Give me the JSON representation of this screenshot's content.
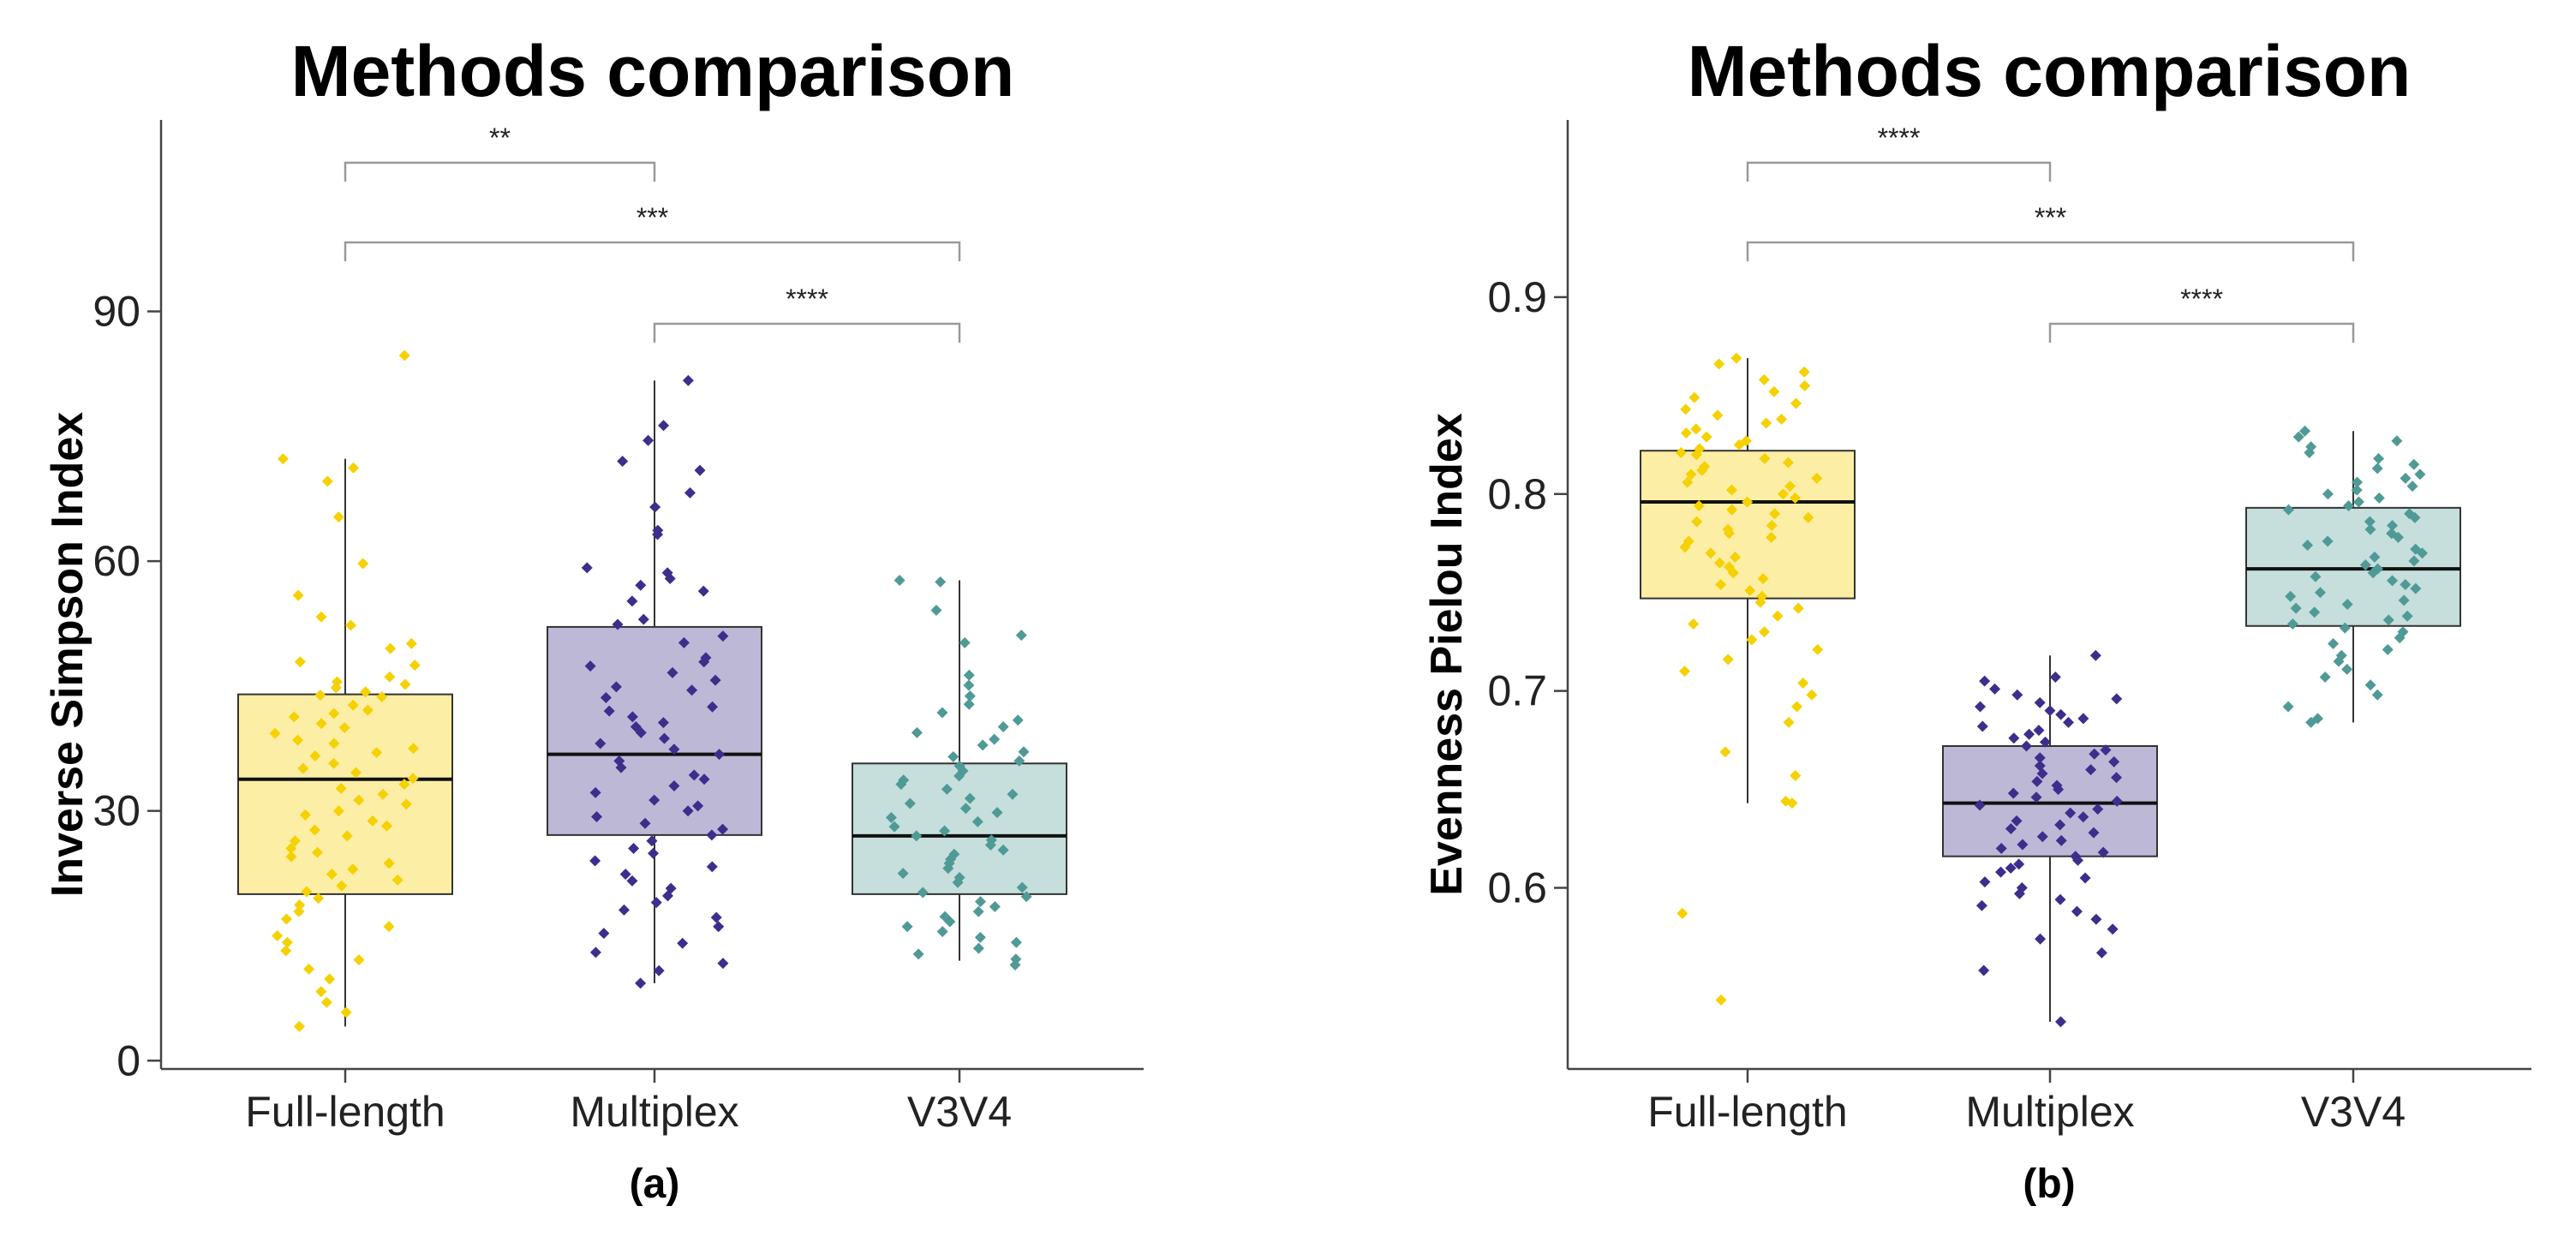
{
  "chart_data": [
    {
      "type": "boxplot",
      "title": "Methods comparison",
      "panel_label": "(a)",
      "xlabel": "",
      "ylabel": "Inverse Simpson Index",
      "categories": [
        "Full-length",
        "Multiplex",
        "V3V4"
      ],
      "ylim": [
        -1,
        113
      ],
      "yticks": [
        0,
        30,
        60,
        90
      ],
      "grid": false,
      "box_stats": [
        {
          "name": "Full-length",
          "min": 4.1,
          "q1": 20,
          "median": 33.8,
          "q3": 44,
          "max": 72.3
        },
        {
          "name": "Multiplex",
          "min": 9.3,
          "q1": 27.1,
          "median": 36.8,
          "q3": 52.1,
          "max": 81.7
        },
        {
          "name": "V3V4",
          "min": 12,
          "q1": 20,
          "median": 27,
          "q3": 35.7,
          "max": 57.7
        }
      ],
      "points": {
        "Full-length": [
          84.7,
          72.3,
          71.2,
          69.6,
          65.3,
          59.7,
          55.9,
          53.3,
          52.3,
          50.1,
          49.5,
          47.9,
          47.5,
          46.1,
          45.5,
          45.2,
          44.8,
          44.3,
          43.9,
          43.7,
          42.7,
          42.1,
          41.7,
          41.3,
          40.5,
          40,
          39.3,
          38.5,
          38.1,
          37.5,
          37,
          36.6,
          35.7,
          35.1,
          34.6,
          33.9,
          33.2,
          32.7,
          32,
          31.3,
          30.8,
          30,
          29.5,
          28.8,
          28.2,
          27.7,
          27,
          26.4,
          25.5,
          25,
          24.5,
          23.7,
          23,
          22.4,
          21.7,
          21,
          20.3,
          19.5,
          18.7,
          17.9,
          17,
          16.1,
          15,
          14.2,
          13.2,
          12.1,
          11,
          9.8,
          8.3,
          7,
          5.8,
          4.1
        ],
        "Multiplex": [
          81.7,
          76.3,
          74.5,
          72,
          70.9,
          68.2,
          66.5,
          63.7,
          63.2,
          59.2,
          58.6,
          57.9,
          57.1,
          56.4,
          55.2,
          53,
          52.4,
          51,
          50.2,
          48.4,
          47.9,
          47.4,
          46.6,
          45.7,
          44.9,
          44.5,
          43.6,
          42.5,
          42,
          41.3,
          40.6,
          40.1,
          39.4,
          38.7,
          38.1,
          37.4,
          36.8,
          36,
          35.2,
          34.3,
          33.8,
          33,
          32.2,
          31.3,
          30.6,
          30,
          29.3,
          28.5,
          27.8,
          27.1,
          26.4,
          25.5,
          24.9,
          24,
          23.3,
          22.4,
          21.6,
          20.7,
          19.8,
          19,
          18.1,
          17.2,
          16.1,
          15.3,
          14.1,
          13,
          11.7,
          10.8,
          9.3
        ],
        "V3V4": [
          57.7,
          57.5,
          54.1,
          51.1,
          50.2,
          46.3,
          45.1,
          43.8,
          42.8,
          41.8,
          40.9,
          40.1,
          39.4,
          38.6,
          37.9,
          37.1,
          36.5,
          36,
          35.4,
          34.8,
          34.2,
          33.7,
          33.2,
          32.6,
          32,
          31.5,
          30.9,
          30.3,
          29.8,
          29.2,
          28.7,
          28.1,
          27.6,
          27,
          26.5,
          25.9,
          25.3,
          24.8,
          24.2,
          23.7,
          23.1,
          22.5,
          22,
          21.4,
          20.8,
          20.2,
          19.7,
          19.1,
          18.5,
          17.9,
          17.3,
          16.7,
          16.1,
          15.5,
          14.8,
          14.2,
          13.5,
          12.8,
          12.2,
          11.5
        ]
      },
      "colors": {
        "Full-length": "#f5d100",
        "Multiplex": "#3f2d8c",
        "V3V4": "#4f9a96"
      },
      "box_fills": {
        "Full-length": "#fdeea6",
        "Multiplex": "#bdb8d6",
        "V3V4": "#c6dedc"
      },
      "comparisons": [
        {
          "from": "Full-length",
          "to": "Multiplex",
          "label": "**"
        },
        {
          "from": "Full-length",
          "to": "V3V4",
          "label": "***"
        },
        {
          "from": "Multiplex",
          "to": "V3V4",
          "label": "****"
        }
      ]
    },
    {
      "type": "boxplot",
      "title": "Methods comparison",
      "panel_label": "(b)",
      "xlabel": "",
      "ylabel": "Evenness Pielou Index",
      "categories": [
        "Full-length",
        "Multiplex",
        "V3V4"
      ],
      "ylim": [
        0.508,
        0.99
      ],
      "yticks": [
        0.6,
        0.7,
        0.8,
        0.9
      ],
      "ytick_labels": [
        "0.6",
        "0.7",
        "0.8",
        "0.9"
      ],
      "grid": false,
      "box_stats": [
        {
          "name": "Full-length",
          "min": 0.643,
          "q1": 0.747,
          "median": 0.796,
          "q3": 0.822,
          "max": 0.869
        },
        {
          "name": "Multiplex",
          "min": 0.532,
          "q1": 0.616,
          "median": 0.643,
          "q3": 0.672,
          "max": 0.718
        },
        {
          "name": "V3V4",
          "min": 0.684,
          "q1": 0.733,
          "median": 0.762,
          "q3": 0.793,
          "max": 0.832
        }
      ],
      "points": {
        "Full-length": [
          0.869,
          0.866,
          0.862,
          0.858,
          0.855,
          0.852,
          0.849,
          0.846,
          0.843,
          0.84,
          0.838,
          0.836,
          0.833,
          0.831,
          0.829,
          0.827,
          0.825,
          0.823,
          0.821,
          0.82,
          0.818,
          0.816,
          0.814,
          0.812,
          0.81,
          0.808,
          0.806,
          0.804,
          0.802,
          0.8,
          0.798,
          0.796,
          0.794,
          0.792,
          0.79,
          0.788,
          0.786,
          0.784,
          0.782,
          0.78,
          0.778,
          0.776,
          0.773,
          0.77,
          0.768,
          0.765,
          0.763,
          0.76,
          0.757,
          0.754,
          0.751,
          0.748,
          0.745,
          0.742,
          0.738,
          0.734,
          0.73,
          0.726,
          0.721,
          0.716,
          0.71,
          0.704,
          0.698,
          0.692,
          0.684,
          0.669,
          0.657,
          0.644,
          0.643,
          0.587,
          0.543
        ],
        "Multiplex": [
          0.718,
          0.707,
          0.705,
          0.701,
          0.698,
          0.696,
          0.694,
          0.692,
          0.69,
          0.688,
          0.686,
          0.684,
          0.682,
          0.68,
          0.678,
          0.676,
          0.674,
          0.672,
          0.67,
          0.668,
          0.666,
          0.664,
          0.662,
          0.66,
          0.658,
          0.656,
          0.654,
          0.652,
          0.65,
          0.648,
          0.646,
          0.644,
          0.642,
          0.64,
          0.638,
          0.636,
          0.634,
          0.632,
          0.63,
          0.628,
          0.626,
          0.624,
          0.622,
          0.62,
          0.618,
          0.616,
          0.614,
          0.612,
          0.61,
          0.608,
          0.605,
          0.603,
          0.6,
          0.597,
          0.594,
          0.591,
          0.588,
          0.584,
          0.579,
          0.574,
          0.567,
          0.558,
          0.532
        ],
        "V3V4": [
          0.832,
          0.829,
          0.827,
          0.824,
          0.821,
          0.818,
          0.815,
          0.813,
          0.81,
          0.808,
          0.806,
          0.804,
          0.802,
          0.8,
          0.798,
          0.796,
          0.794,
          0.792,
          0.79,
          0.788,
          0.786,
          0.784,
          0.782,
          0.78,
          0.778,
          0.776,
          0.774,
          0.772,
          0.77,
          0.768,
          0.766,
          0.764,
          0.762,
          0.76,
          0.758,
          0.756,
          0.754,
          0.752,
          0.75,
          0.748,
          0.746,
          0.744,
          0.742,
          0.74,
          0.738,
          0.736,
          0.734,
          0.732,
          0.73,
          0.727,
          0.724,
          0.721,
          0.718,
          0.715,
          0.711,
          0.707,
          0.703,
          0.698,
          0.692,
          0.686,
          0.684
        ]
      },
      "colors": {
        "Full-length": "#f5d100",
        "Multiplex": "#3f2d8c",
        "V3V4": "#4f9a96"
      },
      "box_fills": {
        "Full-length": "#fdeea6",
        "Multiplex": "#bdb8d6",
        "V3V4": "#c6dedc"
      },
      "comparisons": [
        {
          "from": "Full-length",
          "to": "Multiplex",
          "label": "****"
        },
        {
          "from": "Full-length",
          "to": "V3V4",
          "label": "***"
        },
        {
          "from": "Multiplex",
          "to": "V3V4",
          "label": "****"
        }
      ]
    }
  ]
}
